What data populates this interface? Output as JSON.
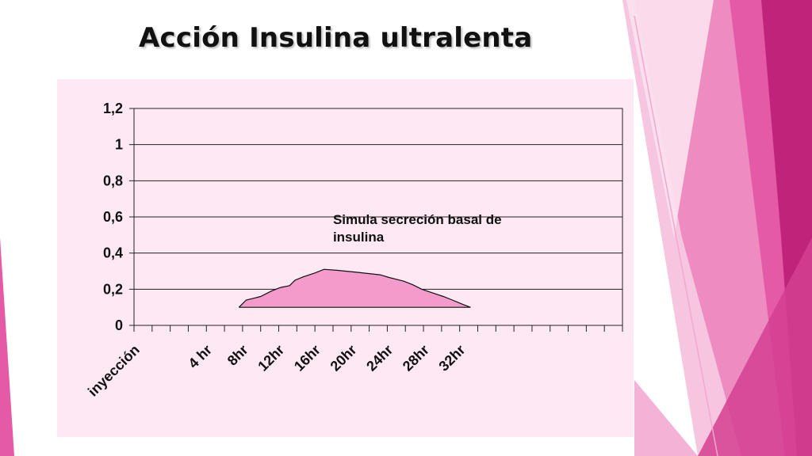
{
  "slide": {
    "title": "Acción Insulina ultralenta"
  },
  "colors": {
    "panel_bg": "#fde8f3",
    "area_fill": "#f39bcb",
    "accent_dark": "#c0237a",
    "accent_mid": "#e45aa6",
    "accent_light": "#f7b8da"
  },
  "chart_data": {
    "type": "area",
    "title": "",
    "xlabel": "",
    "ylabel": "",
    "ylim": [
      0,
      1.2
    ],
    "y_ticks": [
      "0",
      "0,2",
      "0,4",
      "0,6",
      "0,8",
      "1",
      "1,2"
    ],
    "x_tick_labels": [
      {
        "label": "inyección",
        "x": 0
      },
      {
        "label": "4 hr",
        "x": 4
      },
      {
        "label": "8hr",
        "x": 6
      },
      {
        "label": "12hr",
        "x": 8
      },
      {
        "label": "16hr",
        "x": 10
      },
      {
        "label": "20hr",
        "x": 12
      },
      {
        "label": "24hr",
        "x": 14
      },
      {
        "label": "28hr",
        "x": 16
      },
      {
        "label": "32hr",
        "x": 18
      }
    ],
    "x_range": [
      0,
      27
    ],
    "grid": true,
    "series": [
      {
        "points": [
          [
            5.8,
            0.1
          ],
          [
            6.2,
            0.14
          ],
          [
            6.6,
            0.15
          ],
          [
            7.0,
            0.16
          ],
          [
            7.6,
            0.19
          ],
          [
            8.1,
            0.21
          ],
          [
            8.6,
            0.22
          ],
          [
            8.9,
            0.25
          ],
          [
            9.4,
            0.27
          ],
          [
            10.0,
            0.29
          ],
          [
            10.5,
            0.31
          ],
          [
            11.2,
            0.305
          ],
          [
            12.2,
            0.295
          ],
          [
            13.1,
            0.285
          ],
          [
            13.6,
            0.28
          ],
          [
            14.1,
            0.265
          ],
          [
            14.9,
            0.245
          ],
          [
            15.4,
            0.225
          ],
          [
            15.9,
            0.2
          ],
          [
            16.5,
            0.18
          ],
          [
            17.1,
            0.16
          ],
          [
            17.6,
            0.14
          ],
          [
            18.2,
            0.115
          ],
          [
            18.6,
            0.1
          ]
        ]
      }
    ],
    "baseline": 0.1,
    "annotation": {
      "lines": [
        "Simula secreción basal de",
        "insulina"
      ],
      "x": 11,
      "y": 0.56
    }
  }
}
